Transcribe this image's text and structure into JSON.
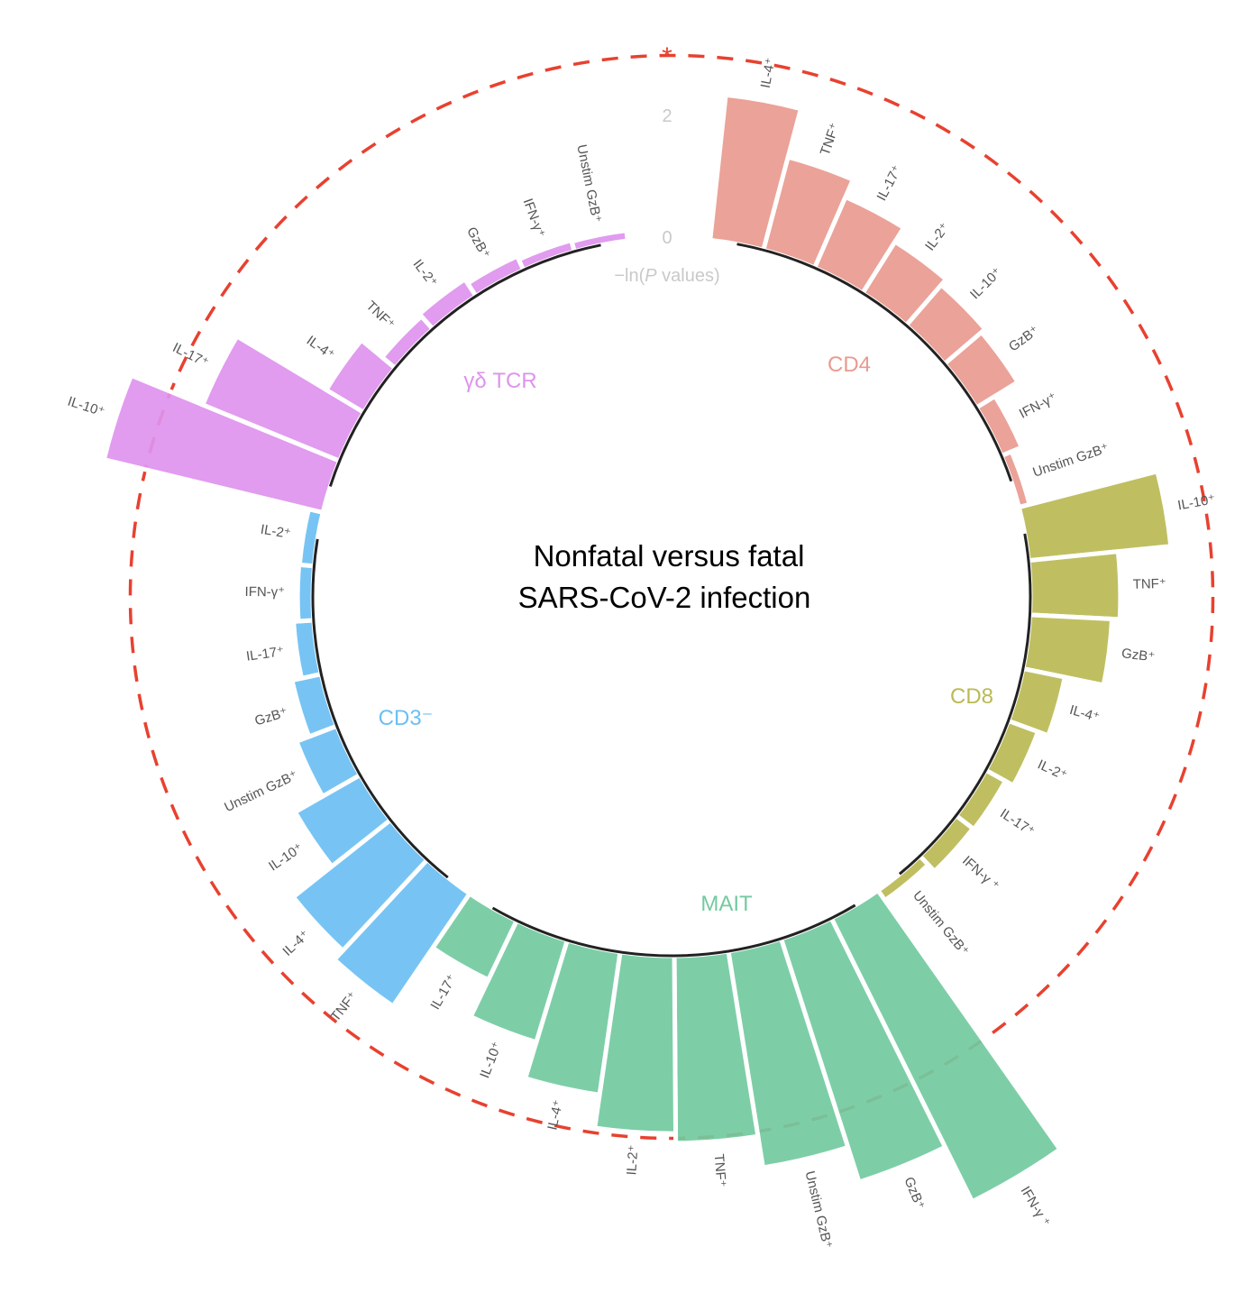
{
  "chart_data": {
    "type": "bar",
    "layout": "circular",
    "title": [
      "Nonfatal versus fatal",
      "SARS-CoV-2 infection"
    ],
    "axis_label": {
      "prefix": "−ln(",
      "italic": "P",
      "suffix": " values)"
    },
    "axis_ticks": [
      "0",
      "2"
    ],
    "axis_tick_values": [
      0,
      2
    ],
    "threshold": {
      "value": 3.0,
      "marker": "*",
      "color": "#E8412F",
      "style": "dashed"
    },
    "groups": [
      {
        "name": "CD4",
        "color": "#E99A8F",
        "categories": [
          "IL-4⁺",
          "TNF⁺",
          "IL-17⁺",
          "IL-2⁺",
          "IL-10⁺",
          "GzB⁺",
          "IFN-γ⁺",
          "Unstim GzB⁺"
        ],
        "values": [
          2.4,
          1.58,
          1.27,
          1.0,
          0.88,
          0.8,
          0.36,
          0.18
        ]
      },
      {
        "name": "CD8",
        "color": "#BABA55",
        "categories": [
          "IL-10⁺",
          "TNF⁺",
          "GzB⁺",
          "IL-4⁺",
          "IL-2⁺",
          "IL-17⁺",
          "IFN-γ ⁺",
          "Unstim GzB⁺"
        ],
        "values": [
          2.35,
          1.48,
          1.35,
          0.7,
          0.52,
          0.37,
          0.35,
          0.2
        ]
      },
      {
        "name": "MAIT",
        "color": "#72CA9F",
        "categories": [
          "IFN-γ ⁺",
          "GzB⁺",
          "Unstim GzB⁺",
          "TNF⁺",
          "IL-2⁺",
          "IL-4⁺",
          "IL-10⁺",
          "IL-17⁺"
        ],
        "values": [
          5.2,
          4.2,
          3.6,
          3.08,
          2.92,
          2.37,
          1.75,
          1.08
        ]
      },
      {
        "name": "CD3⁻",
        "color": "#6BBFF3",
        "categories": [
          "TNF⁺",
          "IL-4⁺",
          "IL-10⁺",
          "Unstim GzB⁺",
          "GzB⁺",
          "IL-17⁺",
          "IFN-γ⁺",
          "IL-2⁺"
        ],
        "values": [
          2.24,
          2.04,
          1.23,
          0.71,
          0.49,
          0.33,
          0.25,
          0.24
        ]
      },
      {
        "name": "γδ TCR",
        "color": "#DE93EE",
        "categories": [
          "IL-10⁺",
          "IL-17⁺",
          "IL-4⁺",
          "TNF⁺",
          "IL-2⁺",
          "GzB⁺",
          "IFN-γ⁺",
          "Unstim GzB⁺"
        ],
        "values": [
          3.7,
          2.43,
          0.72,
          0.28,
          0.33,
          0.25,
          0.19,
          0.17
        ]
      }
    ]
  }
}
